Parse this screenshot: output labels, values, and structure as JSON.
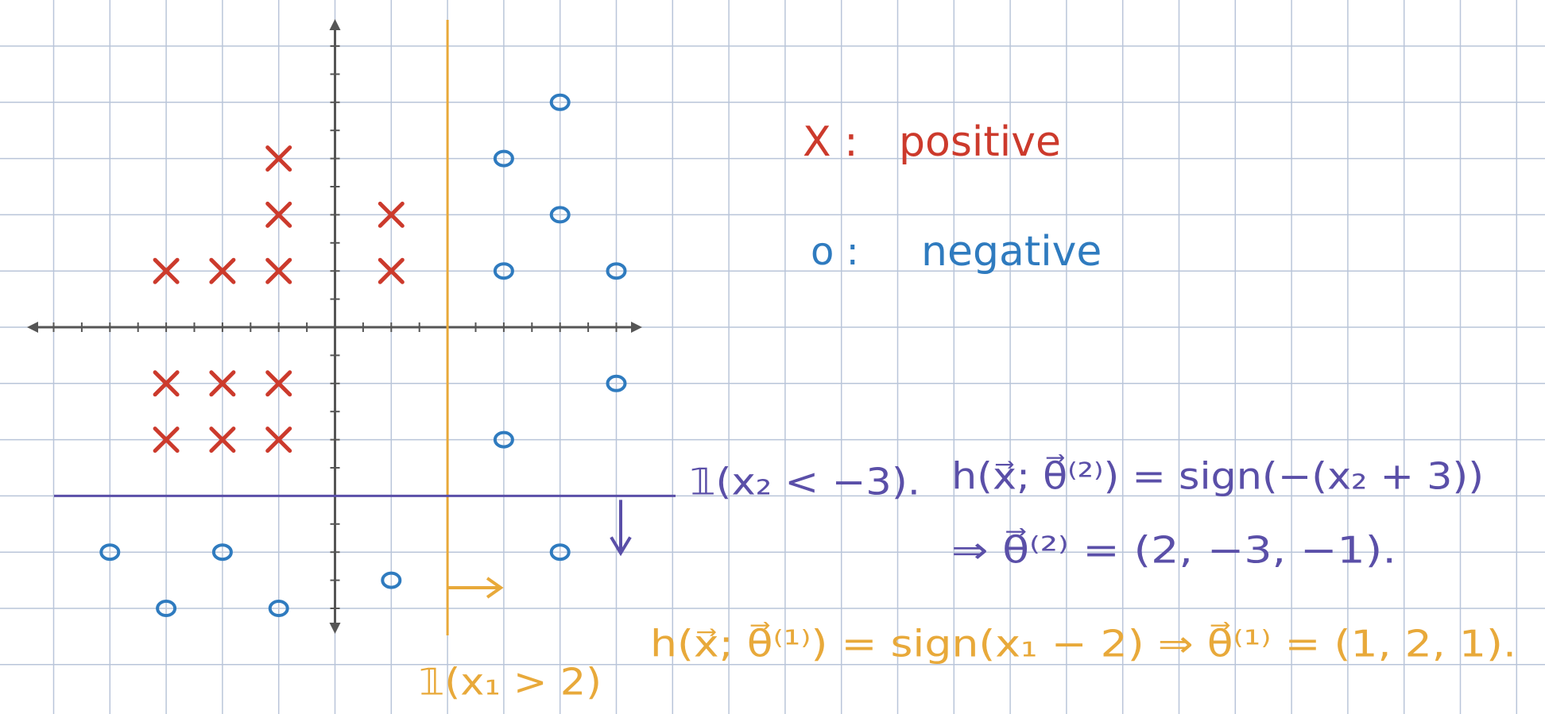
{
  "legend": [
    {
      "symbol": "X :",
      "label": "positive"
    },
    {
      "symbol": "o :",
      "label": "negative"
    }
  ],
  "positive": {
    "points": [
      [
        -1,
        3
      ],
      [
        -1,
        2
      ],
      [
        1,
        2
      ],
      [
        -3,
        1
      ],
      [
        -2,
        1
      ],
      [
        -1,
        1
      ],
      [
        1,
        1
      ],
      [
        -3,
        -1
      ],
      [
        -2,
        -1
      ],
      [
        -1,
        -1
      ],
      [
        -3,
        -2
      ],
      [
        -2,
        -2
      ],
      [
        -1,
        -2
      ]
    ]
  },
  "negative": {
    "points": [
      [
        4,
        4
      ],
      [
        3,
        3
      ],
      [
        4,
        2
      ],
      [
        3,
        1
      ],
      [
        5,
        1
      ],
      [
        5,
        -1
      ],
      [
        3,
        -2
      ],
      [
        -4,
        -4
      ],
      [
        -2,
        -4
      ],
      [
        4,
        -4
      ],
      [
        1,
        -4.5
      ],
      [
        -3,
        -5
      ],
      [
        -1,
        -5
      ]
    ]
  },
  "boundaries": {
    "vertical_x": 2,
    "horizontal_y": -3
  },
  "annotations": {
    "indicator_x2": "𝟙(x₂ < −3).",
    "h2": "h(x⃗; θ⃗⁽²⁾) = sign(−(x₂ + 3))",
    "theta2": "⇒ θ⃗⁽²⁾ = (2, −3, −1).",
    "h1": "h(x⃗; θ⃗⁽¹⁾) = sign(x₁ − 2) ⇒ θ⃗⁽¹⁾ = (1, 2, 1).",
    "indicator_x1": "𝟙(x₁ > 2)"
  }
}
